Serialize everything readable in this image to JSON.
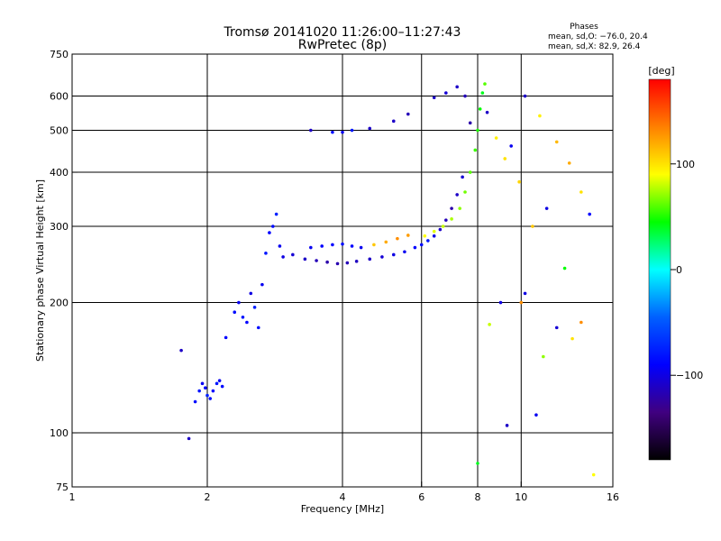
{
  "chart_data": {
    "type": "scatter",
    "title": "Tromsø 20141020 11:26:00–11:27:43",
    "subtitle": "RwPretec (8p)",
    "xlabel": "Frequency [MHz]",
    "ylabel": "Stationary phase Virtual Height [km]",
    "x_scale": "log",
    "y_scale": "log",
    "xlim": [
      1,
      16
    ],
    "ylim": [
      75,
      750
    ],
    "x_ticks": [
      1,
      2,
      4,
      6,
      8,
      10,
      16
    ],
    "x_tick_labels": [
      "1",
      "2",
      "4",
      "6",
      "8",
      "10",
      "16"
    ],
    "x_grid": [
      2,
      4,
      6,
      8,
      10
    ],
    "y_ticks": [
      75,
      100,
      200,
      300,
      400,
      500,
      600,
      750
    ],
    "y_tick_labels": [
      "75",
      "100",
      "200",
      "300",
      "400",
      "500",
      "600",
      "750"
    ],
    "y_grid": [
      100,
      200,
      300,
      400,
      500,
      600
    ],
    "grid": true,
    "phases": {
      "heading": "Phases",
      "line_o": "mean, sd,O: −76.0, 20.4",
      "line_x": "mean, sd,X:  82.9, 26.4"
    },
    "colorbar": {
      "label": "[deg]",
      "range": [
        -180,
        180
      ],
      "ticks": [
        100,
        0,
        -100
      ],
      "tick_labels": [
        "100",
        "0",
        "−100"
      ],
      "colors": [
        "#ff0000",
        "#ff8000",
        "#ffff00",
        "#00ff00",
        "#00ffff",
        "#0060ff",
        "#0000ff",
        "#400080",
        "#000000"
      ]
    },
    "series": [
      {
        "x": [
          1.75,
          1.82,
          1.88,
          1.92,
          1.95,
          1.98,
          2.0,
          2.03,
          2.06,
          2.1,
          2.13,
          2.16,
          2.2
        ],
        "y": [
          155,
          97,
          118,
          125,
          130,
          127,
          122,
          120,
          125,
          130,
          132,
          128,
          166
        ],
        "phase": [
          -110,
          -110,
          -85,
          -80,
          -95,
          -90,
          -75,
          -85,
          -90,
          -80,
          -95,
          -85,
          -90
        ]
      },
      {
        "x": [
          2.3,
          2.35,
          2.4,
          2.45,
          2.5,
          2.55,
          2.6,
          2.65,
          2.7,
          2.75,
          2.8,
          2.85,
          2.9
        ],
        "y": [
          190,
          200,
          185,
          180,
          210,
          195,
          175,
          220,
          260,
          290,
          300,
          320,
          270
        ],
        "phase": [
          -85,
          -95,
          -80,
          -90,
          -100,
          -75,
          -85,
          -95,
          -80,
          -90,
          -85,
          -75,
          -95
        ]
      },
      {
        "x": [
          2.95,
          3.1,
          3.3,
          3.5,
          3.7,
          3.9,
          4.1,
          4.3,
          4.6,
          4.9,
          5.2,
          5.5,
          5.8,
          6.0,
          6.2,
          6.4,
          6.6,
          6.8,
          7.0,
          7.2,
          7.4
        ],
        "y": [
          255,
          258,
          252,
          250,
          248,
          246,
          247,
          249,
          252,
          255,
          258,
          262,
          268,
          272,
          278,
          285,
          295,
          310,
          330,
          355,
          390
        ],
        "phase": [
          -100,
          -105,
          -110,
          -115,
          -120,
          -118,
          -115,
          -112,
          -110,
          -105,
          -100,
          -95,
          -90,
          -85,
          -80,
          -100,
          -110,
          -115,
          -120,
          -110,
          -105
        ]
      },
      {
        "x": [
          3.4,
          3.6,
          3.8,
          4.0,
          4.2,
          4.4,
          4.7,
          5.0,
          5.3,
          5.6
        ],
        "y": [
          268,
          270,
          272,
          273,
          270,
          268,
          272,
          276,
          281,
          286
        ],
        "phase": [
          -95,
          -90,
          -90,
          -85,
          -90,
          -95,
          110,
          120,
          130,
          125
        ]
      },
      {
        "x": [
          6.1,
          6.4,
          6.7,
          7.0,
          7.3,
          7.5,
          7.7,
          7.9,
          8.0,
          8.1,
          8.2,
          8.3
        ],
        "y": [
          285,
          292,
          300,
          312,
          330,
          360,
          400,
          450,
          500,
          560,
          610,
          640
        ],
        "phase": [
          90,
          85,
          80,
          75,
          70,
          65,
          60,
          55,
          50,
          45,
          40,
          60
        ]
      },
      {
        "x": [
          3.4,
          3.8,
          4.0,
          4.2,
          4.6,
          5.2,
          5.6,
          6.4,
          6.8,
          7.2,
          7.5,
          7.7
        ],
        "y": [
          500,
          495,
          495,
          500,
          505,
          525,
          545,
          595,
          610,
          630,
          600,
          520
        ],
        "phase": [
          -110,
          -85,
          -95,
          -80,
          -110,
          -110,
          -115,
          -110,
          -105,
          -110,
          -115,
          -120
        ]
      },
      {
        "x": [
          8.4,
          8.8,
          9.2,
          9.5,
          9.9,
          10.2,
          10.6,
          11.0,
          11.4,
          12.0,
          12.8,
          13.6,
          14.2
        ],
        "y": [
          550,
          480,
          430,
          460,
          380,
          600,
          300,
          540,
          330,
          470,
          420,
          360,
          320
        ],
        "phase": [
          -110,
          95,
          100,
          -95,
          105,
          -110,
          110,
          95,
          -100,
          115,
          120,
          100,
          -90
        ]
      },
      {
        "x": [
          8.0,
          8.5,
          9.0,
          9.3,
          10.0,
          10.2,
          10.8,
          11.2,
          12.0,
          12.5,
          13.0,
          13.6,
          14.5
        ],
        "y": [
          85,
          178,
          200,
          104,
          200,
          210,
          110,
          150,
          175,
          240,
          165,
          180,
          80
        ],
        "phase": [
          40,
          80,
          -100,
          -110,
          130,
          -100,
          -95,
          70,
          -105,
          45,
          100,
          130,
          90
        ]
      }
    ]
  }
}
